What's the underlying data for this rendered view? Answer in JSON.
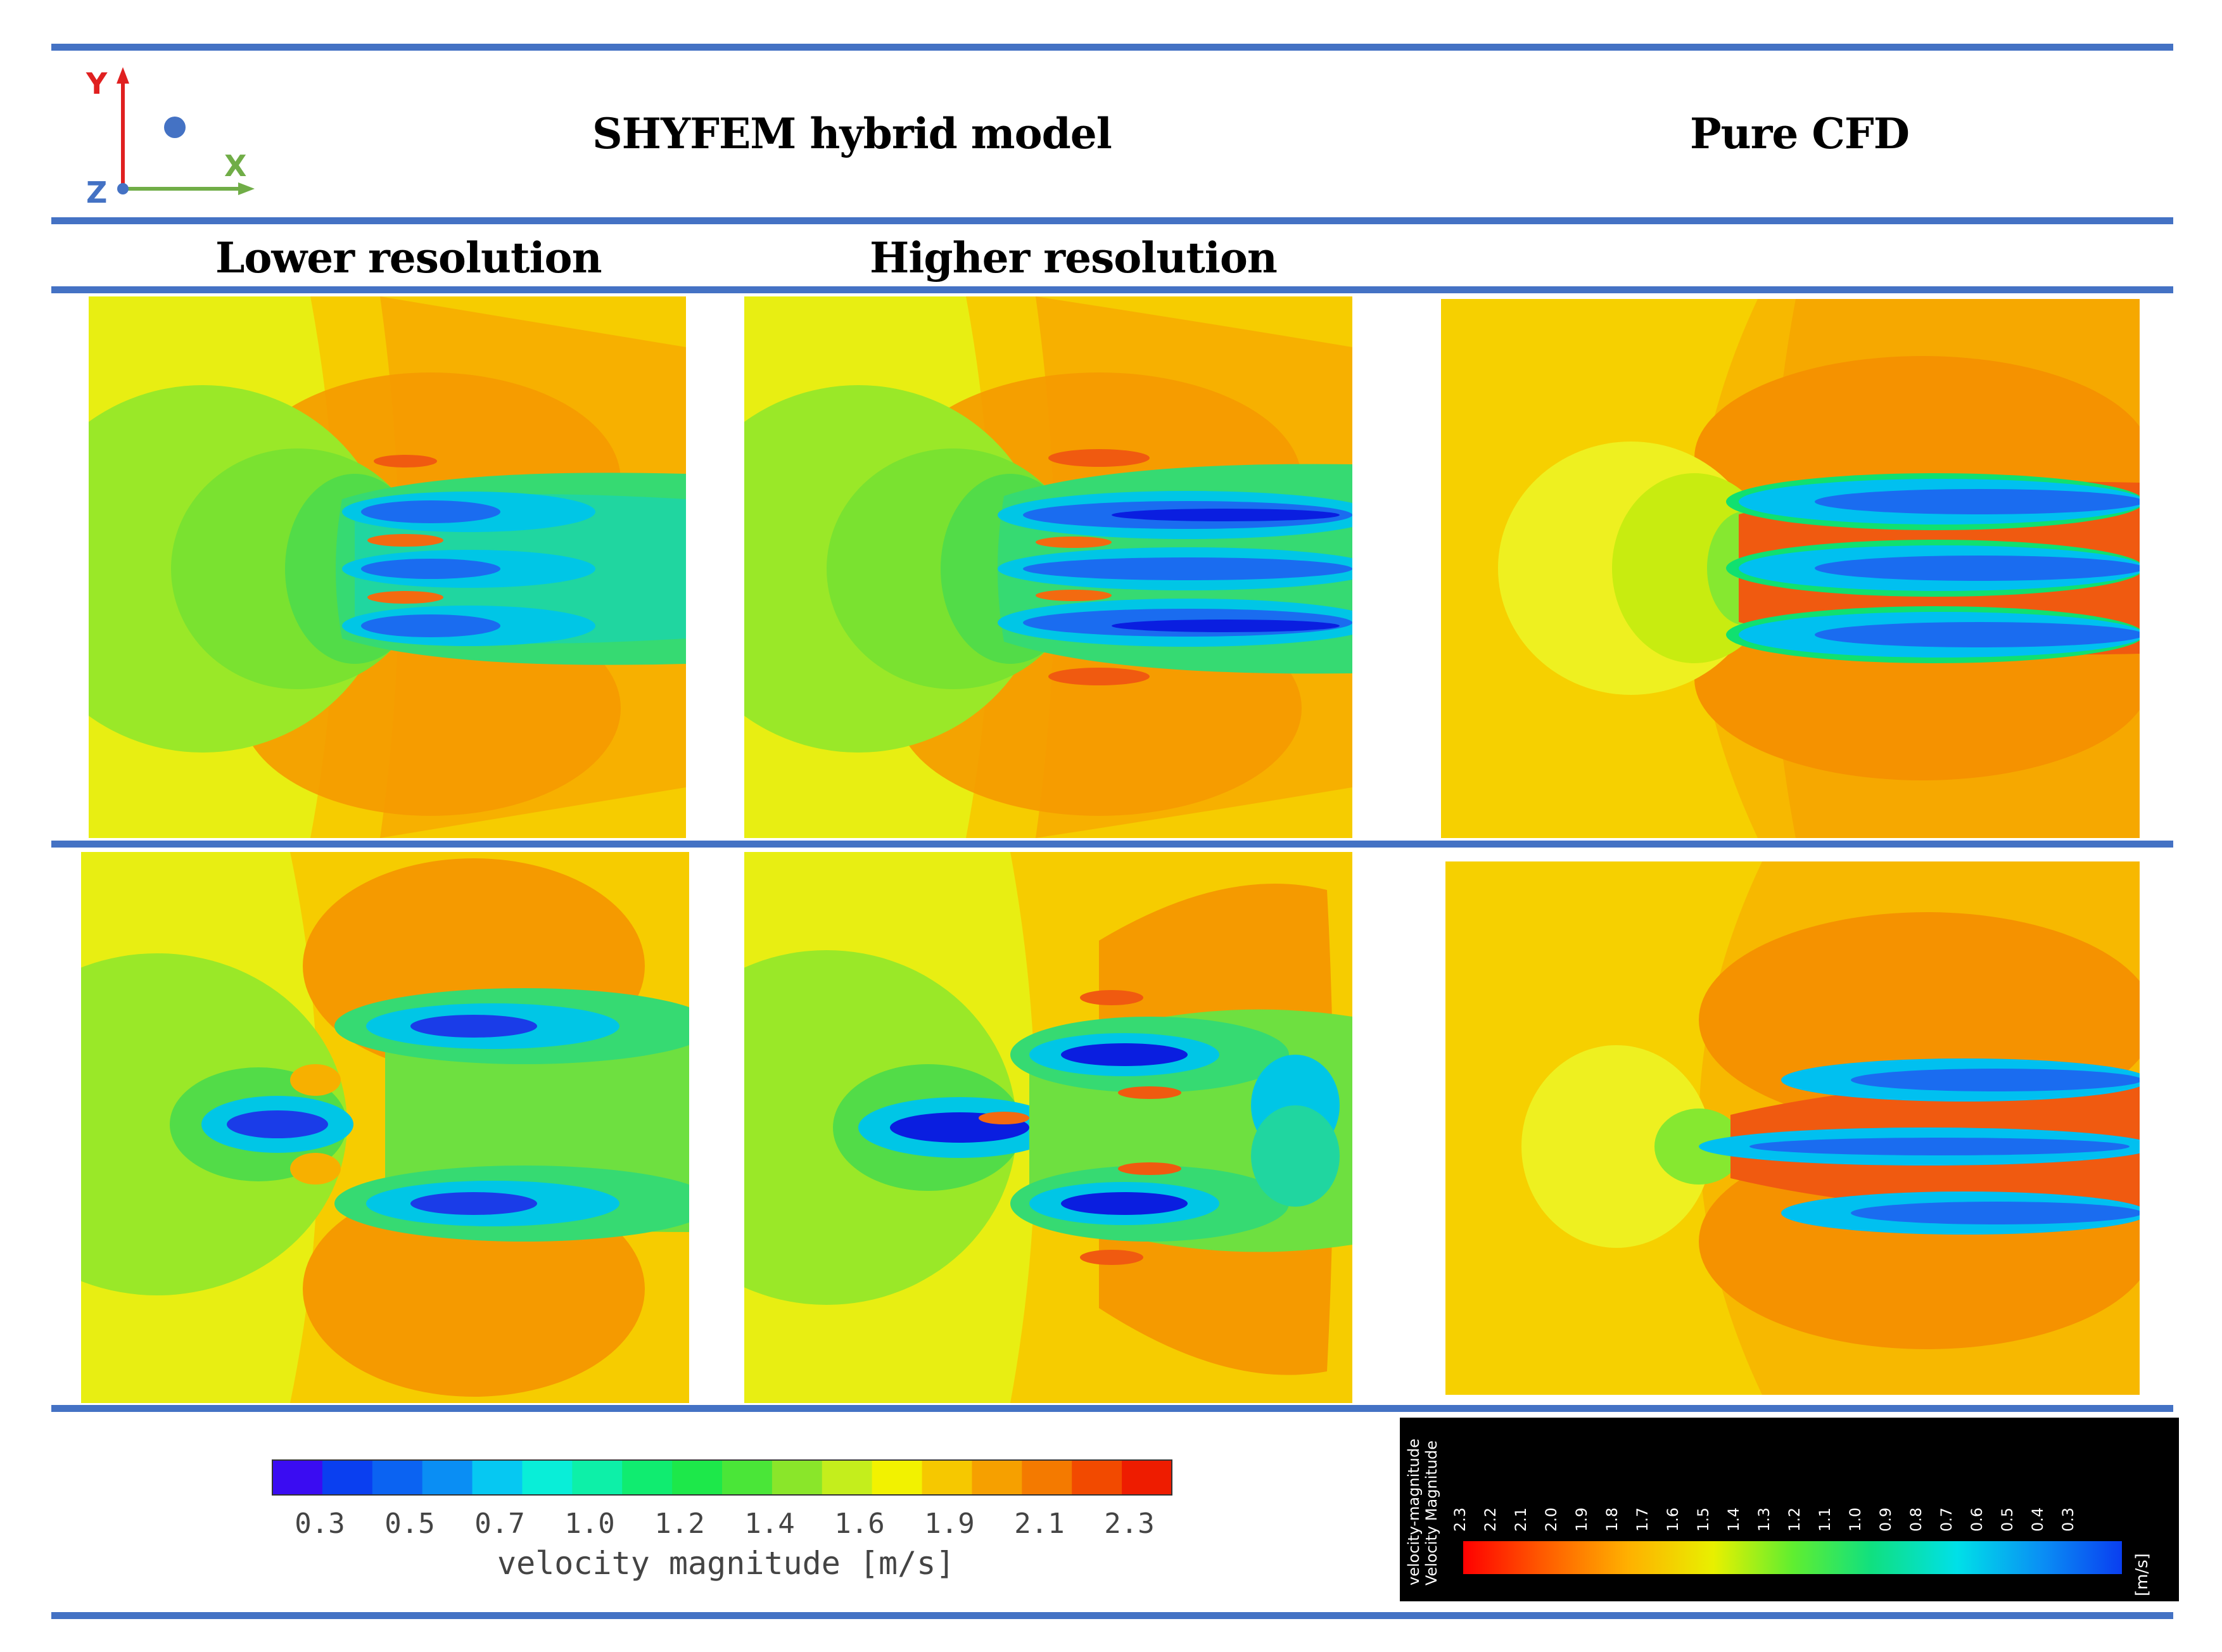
{
  "headers": {
    "left_title": "SHYFEM hybrid model",
    "right_title": "Pure CFD",
    "lower_resolution": "Lower resolution",
    "higher_resolution": "Higher resolution"
  },
  "axes_indicator": {
    "y_label": "Y",
    "x_label": "X",
    "z_label": "Z",
    "colors": {
      "y": "#e02020",
      "x": "#70ad47",
      "z": "#4472c4"
    }
  },
  "colorbar_left": {
    "ticks": [
      "0.3",
      "0.5",
      "0.7",
      "1.0",
      "1.2",
      "1.4",
      "1.6",
      "1.9",
      "2.1",
      "2.3"
    ],
    "label": "velocity magnitude [m/s]",
    "colors": [
      "#3a0cf2",
      "#0a3ff0",
      "#0b63f2",
      "#0a8ef4",
      "#06c8f2",
      "#09eed8",
      "#0df0a8",
      "#10ec70",
      "#1de84a",
      "#4ae638",
      "#8ae62a",
      "#c4ee1c",
      "#f2f200",
      "#f6c800",
      "#f6a000",
      "#f47a00",
      "#f24a00",
      "#ee1c00"
    ]
  },
  "colorbar_right": {
    "title_line1": "velocity-magnitude",
    "title_line2": "Velocity Magnitude",
    "ticks": [
      "2.3",
      "2.2",
      "2.1",
      "2.0",
      "1.9",
      "1.8",
      "1.7",
      "1.6",
      "1.5",
      "1.4",
      "1.3",
      "1.2",
      "1.1",
      "1.0",
      "0.9",
      "0.8",
      "0.7",
      "0.6",
      "0.5",
      "0.4",
      "0.3"
    ],
    "unit": "[m/s]"
  },
  "palette": {
    "far": "#e6f015",
    "ambient": "#f5d800",
    "orange": "#f7a700",
    "dark_orange": "#f38a00",
    "red": "#f05a10",
    "yellow_green": "#c8ec10",
    "light_green": "#9aee20",
    "green": "#38e060",
    "cyan": "#00e0e0",
    "blue": "#1a6cf0",
    "dark_blue": "#0a1ee0"
  }
}
